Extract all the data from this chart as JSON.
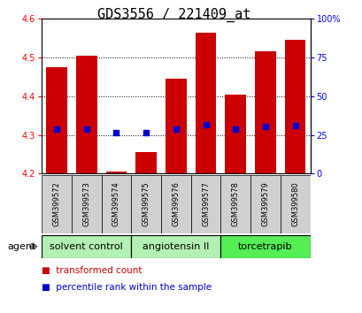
{
  "title": "GDS3556 / 221409_at",
  "samples": [
    "GSM399572",
    "GSM399573",
    "GSM399574",
    "GSM399575",
    "GSM399576",
    "GSM399577",
    "GSM399578",
    "GSM399579",
    "GSM399580"
  ],
  "bar_bottoms": [
    4.2,
    4.2,
    4.2,
    4.2,
    4.2,
    4.2,
    4.2,
    4.2,
    4.2
  ],
  "bar_tops": [
    4.475,
    4.505,
    4.205,
    4.255,
    4.445,
    4.565,
    4.405,
    4.515,
    4.545
  ],
  "percentile_values": [
    4.316,
    4.316,
    4.305,
    4.307,
    4.316,
    4.326,
    4.316,
    4.323,
    4.325
  ],
  "ylim": [
    4.2,
    4.6
  ],
  "y2lim": [
    0,
    100
  ],
  "yticks": [
    4.2,
    4.3,
    4.4,
    4.5,
    4.6
  ],
  "y2ticks": [
    0,
    25,
    50,
    75,
    100
  ],
  "bar_color": "#CC0000",
  "percentile_color": "#0000CC",
  "group_labels": [
    "solvent control",
    "angiotensin II",
    "torcetrapib"
  ],
  "group_ranges": [
    [
      0,
      2
    ],
    [
      3,
      5
    ],
    [
      6,
      8
    ]
  ],
  "group_colors_light": "#b3f0b3",
  "group_color_dark": "#55ee55",
  "sample_bg_color": "#d0d0d0",
  "agent_label": "agent",
  "legend_items": [
    "transformed count",
    "percentile rank within the sample"
  ],
  "legend_colors": [
    "#CC0000",
    "#0000CC"
  ],
  "background_color": "#ffffff",
  "title_fontsize": 11,
  "axis_fontsize": 7,
  "sample_fontsize": 6,
  "group_fontsize": 8,
  "legend_fontsize": 7.5
}
